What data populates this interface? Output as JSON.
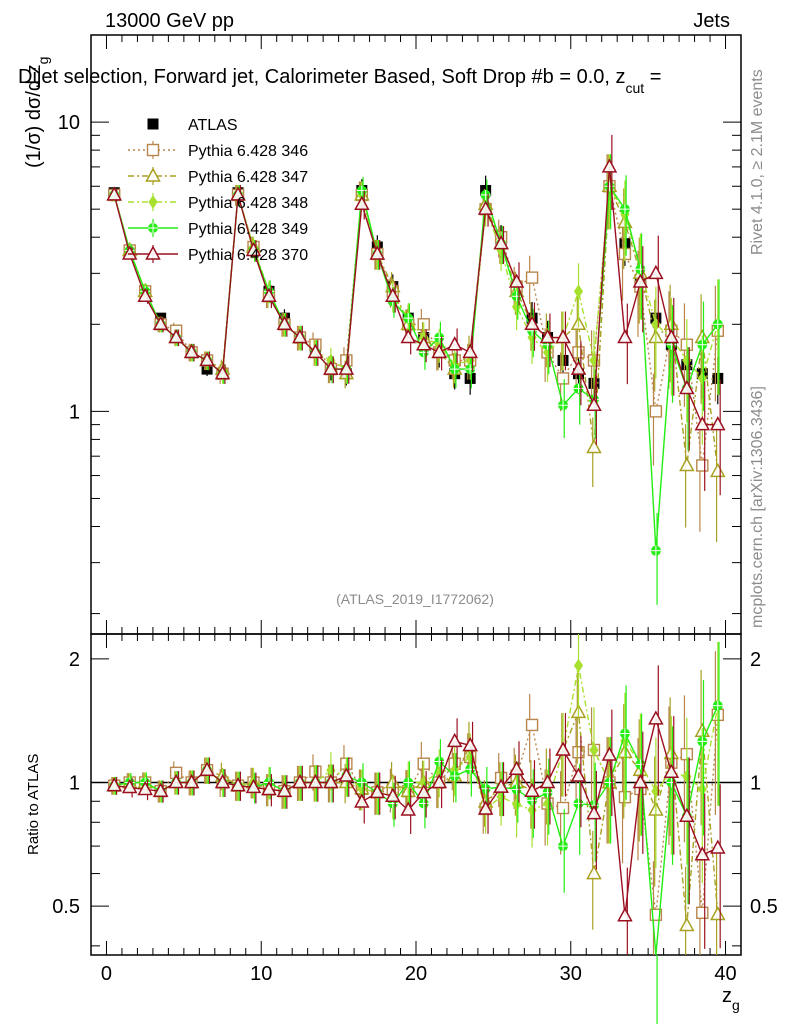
{
  "header": {
    "left": "13000 GeV pp",
    "right": "Jets"
  },
  "chart_data": {
    "type": "scatter",
    "title": "Dijet selection, Forward jet, Calorimeter Based, Soft Drop #b = 0.0, z_cut =",
    "title_parts": {
      "main": "Dijet selection, Forward jet, Calorimeter Based, Soft Drop #b = 0.0, z",
      "sub": "cut",
      "tail": " ="
    },
    "ylabel": {
      "prefix": "(1/σ) dσ/d z",
      "sub": "g"
    },
    "xlabel": {
      "main": "z",
      "sub": "g"
    },
    "ratio_ylabel": "Ratio to ATLAS",
    "analysis_id": "(ATLAS_2019_I1772062)",
    "side_label": "Rivet 4.1.0, ≥ 2.1M events",
    "side_url": "mcplots.cern.ch [arXiv:1306.3436]",
    "xlim": [
      -1,
      41
    ],
    "ylim": [
      0.17,
      20
    ],
    "ratio_ylim": [
      0.38,
      2.3
    ],
    "xticks": [
      "0",
      "10",
      "20",
      "30",
      "40"
    ],
    "yticks": [
      "1",
      "10"
    ],
    "ratio_yticks": [
      "0.5",
      "1",
      "2"
    ],
    "x": [
      0.5,
      1.5,
      2.5,
      3.5,
      4.5,
      5.5,
      6.5,
      7.5,
      8.5,
      9.5,
      10.5,
      11.5,
      12.5,
      13.5,
      14.5,
      15.5,
      16.5,
      17.5,
      18.5,
      19.5,
      20.5,
      21.5,
      22.5,
      23.5,
      24.5,
      25.5,
      26.5,
      27.5,
      28.5,
      29.5,
      30.5,
      31.5,
      32.5,
      33.5,
      34.5,
      35.5,
      36.5,
      37.5,
      38.5,
      39.5
    ],
    "series": [
      {
        "name": "ATLAS",
        "color": "#000000",
        "marker": "square-filled",
        "dash": "",
        "values": [
          5.7,
          3.6,
          2.6,
          2.1,
          1.8,
          1.6,
          1.4,
          1.35,
          5.7,
          3.7,
          2.6,
          2.1,
          1.8,
          1.6,
          1.4,
          1.35,
          5.8,
          3.7,
          2.7,
          2.1,
          1.8,
          1.6,
          1.35,
          1.3,
          5.8,
          3.9,
          2.6,
          2.1,
          1.8,
          1.5,
          1.35,
          1.25,
          6.0,
          3.8,
          2.8,
          2.1,
          1.7,
          1.45,
          1.35,
          1.3
        ]
      },
      {
        "name": "Pythia 6.428 346",
        "color": "#b8864b",
        "marker": "square-open",
        "dash": "2,3",
        "values": [
          5.6,
          3.6,
          2.6,
          2.0,
          1.9,
          1.6,
          1.5,
          1.35,
          5.6,
          3.7,
          2.5,
          2.0,
          1.8,
          1.7,
          1.4,
          1.5,
          5.6,
          3.5,
          2.6,
          2.0,
          2.0,
          1.6,
          1.5,
          1.5,
          5.0,
          4.0,
          2.7,
          2.9,
          1.6,
          1.3,
          1.6,
          1.5,
          6.0,
          3.5,
          2.7,
          1.0,
          1.9,
          1.7,
          0.65,
          1.9
        ]
      },
      {
        "name": "Pythia 6.428 347",
        "color": "#a8a020",
        "marker": "triangle-open",
        "dash": "6,3,2,3",
        "values": [
          5.6,
          3.6,
          2.6,
          2.0,
          1.8,
          1.6,
          1.5,
          1.4,
          5.6,
          3.7,
          2.5,
          2.0,
          1.8,
          1.6,
          1.4,
          1.35,
          5.6,
          3.5,
          2.7,
          2.0,
          1.8,
          1.6,
          1.4,
          1.6,
          5.2,
          3.8,
          2.6,
          2.0,
          1.8,
          1.8,
          2.0,
          0.75,
          6.0,
          4.5,
          3.0,
          1.8,
          2.0,
          0.65,
          1.8,
          0.62
        ]
      },
      {
        "name": "Pythia 6.428 348",
        "color": "#a8e030",
        "marker": "diamond",
        "dash": "6,3,2,3",
        "values": [
          5.6,
          3.6,
          2.6,
          2.0,
          1.8,
          1.6,
          1.5,
          1.35,
          5.6,
          3.7,
          2.6,
          2.0,
          1.8,
          1.6,
          1.5,
          1.4,
          5.6,
          3.5,
          2.5,
          2.1,
          1.8,
          1.7,
          1.45,
          1.5,
          5.0,
          3.6,
          2.3,
          1.8,
          1.6,
          1.8,
          2.6,
          1.5,
          6.0,
          4.8,
          3.1,
          2.0,
          1.8,
          1.5,
          1.3,
          2.0
        ]
      },
      {
        "name": "Pythia 6.428 349",
        "color": "#22ee11",
        "marker": "cross-circle",
        "dash": "",
        "values": [
          5.6,
          3.6,
          2.6,
          2.0,
          1.8,
          1.6,
          1.5,
          1.35,
          5.6,
          3.6,
          2.6,
          2.0,
          1.8,
          1.6,
          1.4,
          1.4,
          5.8,
          3.5,
          2.4,
          2.1,
          1.6,
          1.8,
          1.4,
          1.4,
          5.6,
          3.8,
          2.5,
          1.9,
          1.7,
          1.05,
          1.2,
          1.1,
          6.0,
          5.0,
          3.1,
          0.33,
          1.7,
          1.2,
          1.7,
          2.0
        ]
      },
      {
        "name": "Pythia 6.428 370",
        "color": "#9b1020",
        "marker": "triangle-open",
        "dash": "",
        "values": [
          5.6,
          3.5,
          2.5,
          2.0,
          1.8,
          1.6,
          1.5,
          1.35,
          5.6,
          3.6,
          2.5,
          2.0,
          1.8,
          1.6,
          1.4,
          1.4,
          5.2,
          3.5,
          2.5,
          1.8,
          1.7,
          1.6,
          1.7,
          1.6,
          5.0,
          3.8,
          2.8,
          2.0,
          1.8,
          1.8,
          1.4,
          1.05,
          7.0,
          1.8,
          2.8,
          3.0,
          1.8,
          1.2,
          0.9,
          0.9
        ]
      }
    ],
    "legend_position": "top-left"
  }
}
